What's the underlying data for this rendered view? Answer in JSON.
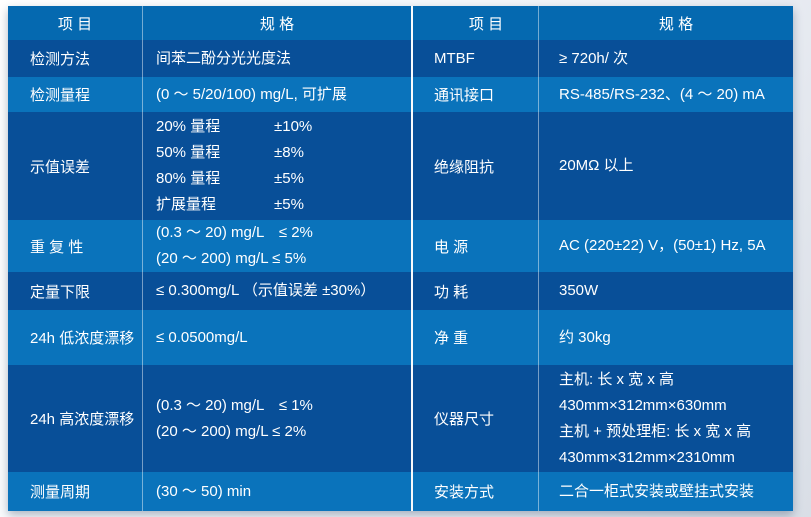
{
  "table": {
    "colors": {
      "header_bg": "#0569b0",
      "row_dark_bg": "#084f98",
      "row_light_bg": "#0a73bb",
      "text": "#ffffff",
      "divider": "rgba(255,255,255,0.5)"
    },
    "halves": [
      {
        "header": {
          "item": "项 目",
          "spec": "规 格"
        },
        "rows": [
          {
            "item": "检测方法",
            "lines": [
              "间苯二酚分光光度法"
            ]
          },
          {
            "item": "检测量程",
            "lines": [
              "(0 ～ 5/20/100) mg/L, 可扩展"
            ]
          },
          {
            "item": "示值误差",
            "lines": [
              {
                "l": "20% 量程",
                "v": "±10%"
              },
              {
                "l": "50% 量程",
                "v": "±8%"
              },
              {
                "l": "80% 量程",
                "v": "±5%"
              },
              {
                "l": "扩展量程",
                "v": "±5%"
              }
            ]
          },
          {
            "item": "重 复 性",
            "lines": [
              "(0.3 ～ 20) mg/L　≤ 2%",
              "(20 ～ 200) mg/L ≤ 5%"
            ]
          },
          {
            "item": "定量下限",
            "lines": [
              "≤ 0.300mg/L （示值误差 ±30%）"
            ]
          },
          {
            "item": "24h 低浓度漂移",
            "lines": [
              "≤ 0.0500mg/L"
            ]
          },
          {
            "item": "24h 高浓度漂移",
            "lines": [
              "(0.3 ～ 20) mg/L　≤ 1%",
              "(20 ～ 200) mg/L ≤ 2%"
            ]
          },
          {
            "item": "测量周期",
            "lines": [
              "(30 ～ 50) min"
            ]
          }
        ]
      },
      {
        "header": {
          "item": "项 目",
          "spec": "规 格"
        },
        "rows": [
          {
            "item": "MTBF",
            "lines": [
              "≥ 720h/ 次"
            ]
          },
          {
            "item": "通讯接口",
            "lines": [
              "RS-485/RS-232、(4 ～ 20) mA"
            ]
          },
          {
            "item": "绝缘阻抗",
            "lines": [
              "20MΩ 以上"
            ]
          },
          {
            "item": "电 源",
            "lines": [
              "AC (220±22) V，(50±1) Hz, 5A"
            ]
          },
          {
            "item": "功 耗",
            "lines": [
              "350W"
            ]
          },
          {
            "item": "净 重",
            "lines": [
              "约 30kg"
            ]
          },
          {
            "item": "仪器尺寸",
            "lines": [
              "主机: 长 x 宽 x 高",
              "430mm×312mm×630mm",
              "主机 + 预处理柜: 长 x 宽 x 高",
              "430mm×312mm×2310mm"
            ]
          },
          {
            "item": "安装方式",
            "lines": [
              "二合一柜式安装或壁挂式安装"
            ]
          }
        ]
      }
    ]
  }
}
